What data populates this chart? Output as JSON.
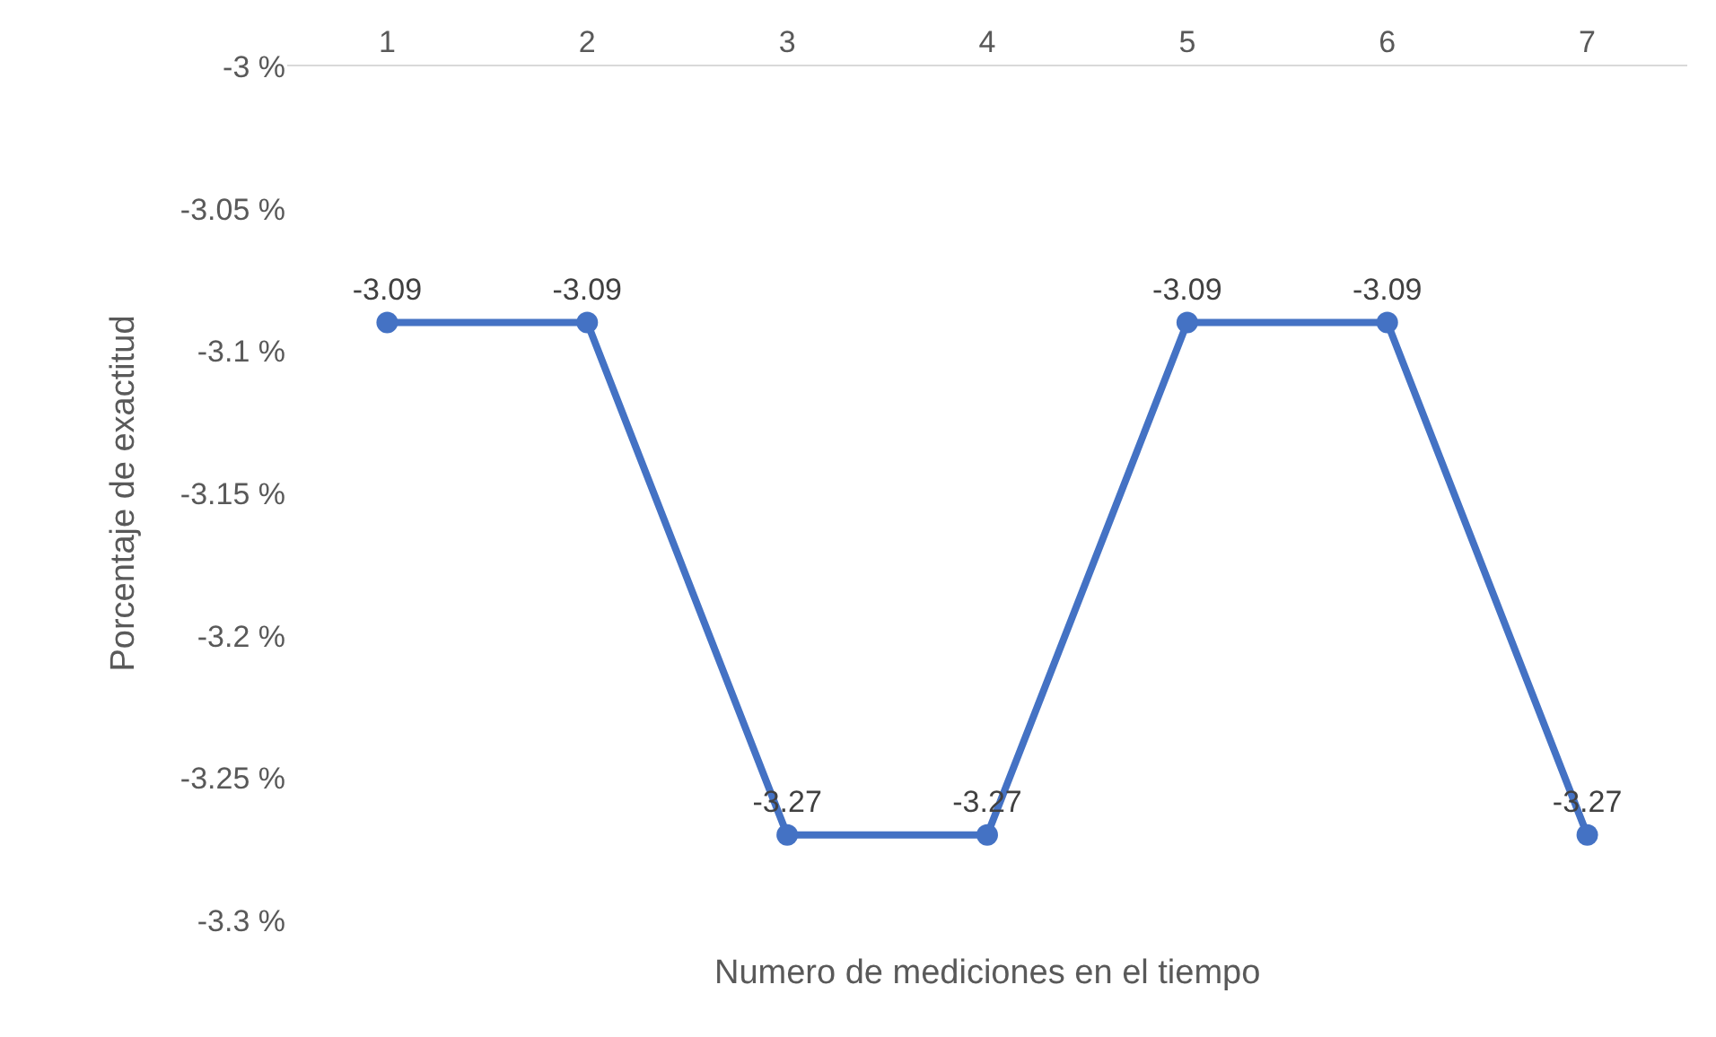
{
  "chart_data": {
    "type": "line",
    "xlabel": "Numero de mediciones en el tiempo",
    "ylabel": "Porcentaje de exactitud",
    "categories": [
      "1",
      "2",
      "3",
      "4",
      "5",
      "6",
      "7"
    ],
    "series": [
      {
        "color": "#4472c4",
        "values": [
          -3.09,
          -3.09,
          -3.27,
          -3.27,
          -3.09,
          -3.09,
          -3.27
        ]
      }
    ],
    "ylim": [
      -3.3,
      -3
    ],
    "yticks": [
      {
        "value": -3,
        "label": "-3 %"
      },
      {
        "value": -3.05,
        "label": "-3.05 %"
      },
      {
        "value": -3.1,
        "label": "-3.1 %"
      },
      {
        "value": -3.15,
        "label": "-3.15 %"
      },
      {
        "value": -3.2,
        "label": "-3.2 %"
      },
      {
        "value": -3.25,
        "label": "-3.25 %"
      },
      {
        "value": -3.3,
        "label": "-3.3 %"
      }
    ],
    "grid": false,
    "marker": "circle",
    "line_style": "solid",
    "data_labels": true
  }
}
